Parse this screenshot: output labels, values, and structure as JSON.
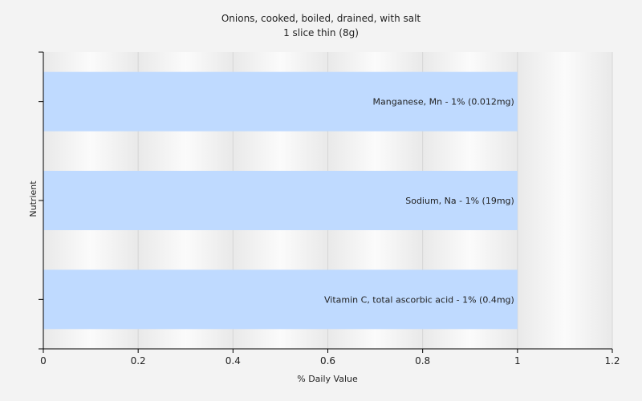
{
  "chart_data": {
    "type": "bar",
    "orientation": "horizontal",
    "title": "Onions, cooked, boiled, drained, with salt",
    "subtitle": "1 slice thin (8g)",
    "xlabel": "% Daily Value",
    "ylabel": "Nutrient",
    "xlim": [
      0,
      1.2
    ],
    "xticks": [
      "0",
      "0.2",
      "0.4",
      "0.6",
      "0.8",
      "1",
      "1.2"
    ],
    "grid": true,
    "bar_color": "#bfdaff",
    "categories": [
      "Manganese, Mn - 1% (0.012mg)",
      "Sodium, Na - 1% (19mg)",
      "Vitamin C, total ascorbic acid - 1% (0.4mg)"
    ],
    "values": [
      1,
      1,
      1
    ]
  }
}
